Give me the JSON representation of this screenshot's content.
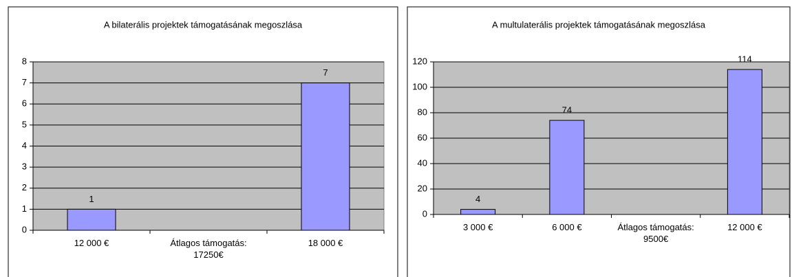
{
  "chart_data": [
    {
      "type": "bar",
      "title": "A bilaterális projektek támogatásának megoszlása",
      "categories": [
        "12 000 €",
        "Átlagos támogatás: 17250€",
        "18 000 €"
      ],
      "values": [
        1,
        null,
        7
      ],
      "color": "#9999ff",
      "background": "#c0c0c0",
      "ylim": [
        0,
        8
      ],
      "yticks": [
        0,
        1,
        2,
        3,
        4,
        5,
        6,
        7,
        8
      ],
      "grid": true
    },
    {
      "type": "bar",
      "title": "A multulaterális projektek támogatásának megoszlása",
      "categories": [
        "3 000 €",
        "6 000 €",
        "Átlagos támogatás: 9500€",
        "12 000 €"
      ],
      "values": [
        4,
        74,
        null,
        114
      ],
      "color": "#9999ff",
      "background": "#c0c0c0",
      "ylim": [
        0,
        120
      ],
      "yticks": [
        0,
        20,
        40,
        60,
        80,
        100,
        120
      ],
      "grid": true
    }
  ]
}
